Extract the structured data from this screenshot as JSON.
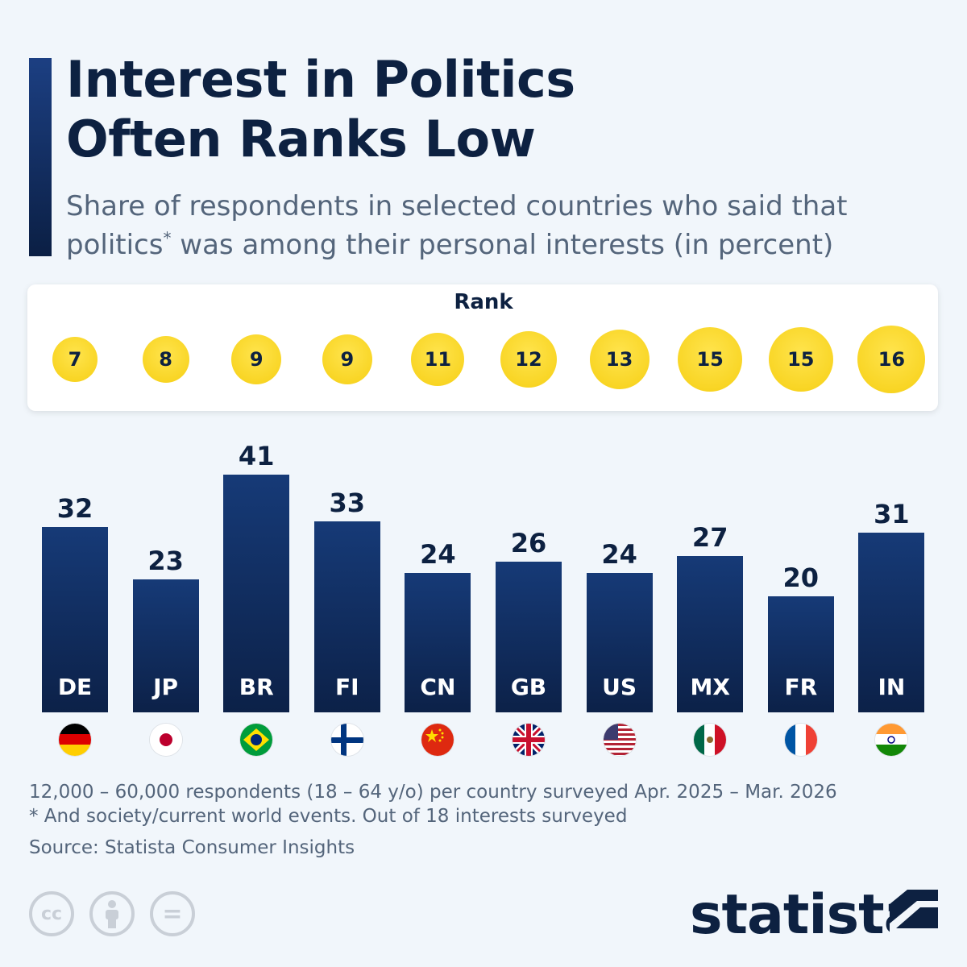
{
  "header": {
    "title_line1": "Interest in Politics",
    "title_line2": "Often Ranks Low",
    "subtitle_line1": "Share of respondents in selected countries who said that",
    "subtitle_line2a": "politics",
    "subtitle_asterisk": "*",
    "subtitle_line2b": " was among their personal interests (in percent)"
  },
  "rank_label": "Rank",
  "chart_data": {
    "type": "bar",
    "title": "Interest in Politics Often Ranks Low",
    "subtitle": "Share of respondents in selected countries who said that politics* was among their personal interests (in percent)",
    "categories": [
      "DE",
      "JP",
      "BR",
      "FI",
      "CN",
      "GB",
      "US",
      "MX",
      "FR",
      "IN"
    ],
    "values": [
      32,
      23,
      41,
      33,
      24,
      26,
      24,
      27,
      20,
      31
    ],
    "ranks": [
      7,
      8,
      9,
      9,
      11,
      12,
      13,
      15,
      15,
      16
    ],
    "ylim": [
      0,
      41
    ],
    "grid": false,
    "legend": "none",
    "bar_color": "#0f2a5c"
  },
  "footer": {
    "note1": "12,000 – 60,000 respondents (18 – 64 y/o) per country surveyed Apr. 2025 – Mar. 2026",
    "note2": "* And society/current world events. Out of 18 interests surveyed",
    "source": "Source: Statista Consumer Insights",
    "license_icons": [
      "cc-icon",
      "attribution-icon",
      "no-derivatives-icon"
    ],
    "license_cc_text": "cc",
    "license_nd_text": "=",
    "logo_text": "statista"
  },
  "colors": {
    "accent": "#0d2141",
    "rank_yellow": "#f6cf14",
    "background": "#f1f6fb"
  }
}
